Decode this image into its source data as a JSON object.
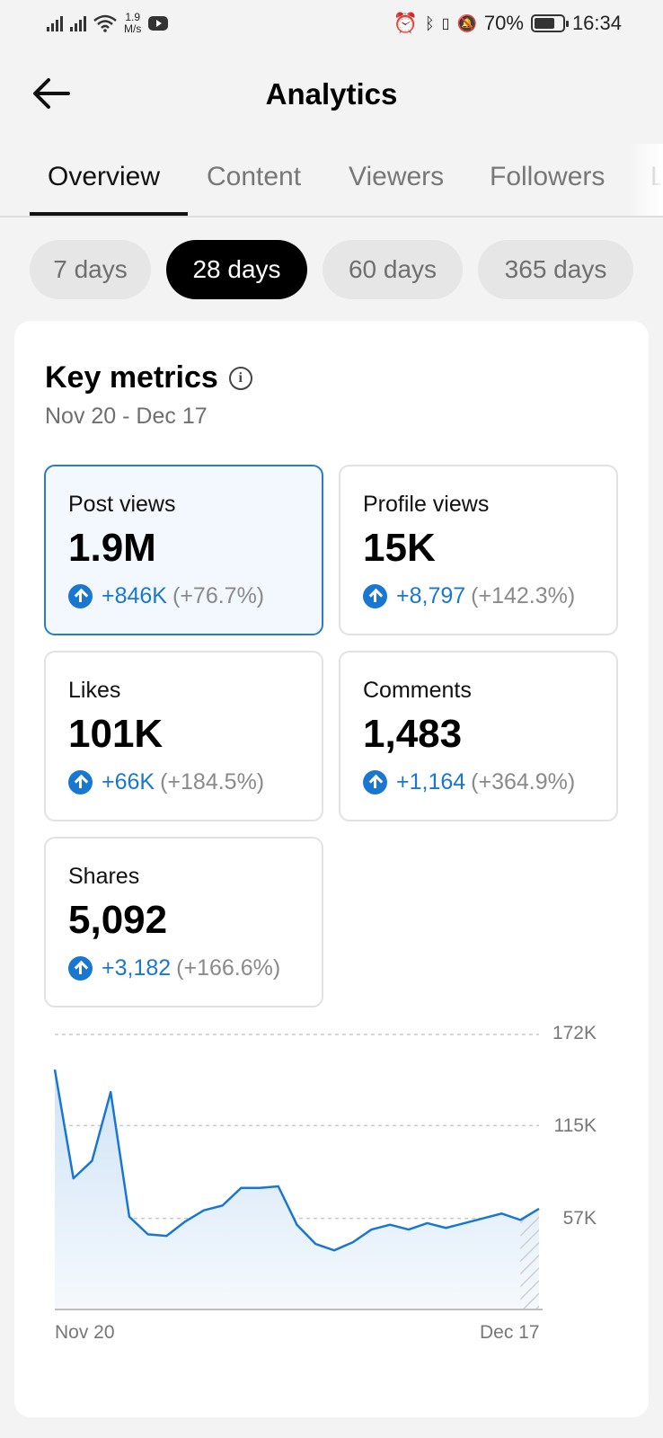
{
  "status_bar": {
    "speed_value": "1.9",
    "speed_unit": "M/s",
    "battery": "70%",
    "time": "16:34"
  },
  "header": {
    "title": "Analytics"
  },
  "tabs": [
    {
      "label": "Overview",
      "active": true
    },
    {
      "label": "Content"
    },
    {
      "label": "Viewers"
    },
    {
      "label": "Followers"
    },
    {
      "label": "L"
    }
  ],
  "ranges": [
    {
      "label": "7 days"
    },
    {
      "label": "28 days",
      "active": true
    },
    {
      "label": "60 days"
    },
    {
      "label": "365 days"
    }
  ],
  "key_metrics": {
    "title": "Key metrics",
    "date_range": "Nov 20 - Dec 17",
    "items": [
      {
        "label": "Post views",
        "value": "1.9M",
        "delta": "+846K",
        "pct": "(+76.7%)",
        "selected": true
      },
      {
        "label": "Profile views",
        "value": "15K",
        "delta": "+8,797",
        "pct": "(+142.3%)"
      },
      {
        "label": "Likes",
        "value": "101K",
        "delta": "+66K",
        "pct": "(+184.5%)"
      },
      {
        "label": "Comments",
        "value": "1,483",
        "delta": "+1,164",
        "pct": "(+364.9%)"
      },
      {
        "label": "Shares",
        "value": "5,092",
        "delta": "+3,182",
        "pct": "(+166.6%)"
      }
    ]
  },
  "colors": {
    "accent": "#1977d2",
    "selected_border": "#2b7cc8",
    "selected_bg": "#f2f8fd"
  },
  "chart_data": {
    "type": "area",
    "y_ticks": [
      "172K",
      "115K",
      "57K"
    ],
    "x_labels": [
      "Nov 20",
      "Dec 17"
    ],
    "ylim": [
      0,
      172
    ],
    "grid": true,
    "values": [
      150,
      82,
      93,
      136,
      58,
      47,
      46,
      55,
      62,
      65,
      76,
      76,
      77,
      53,
      41,
      37,
      42,
      50,
      53,
      50,
      54,
      51,
      54,
      57,
      60,
      56,
      63
    ]
  }
}
